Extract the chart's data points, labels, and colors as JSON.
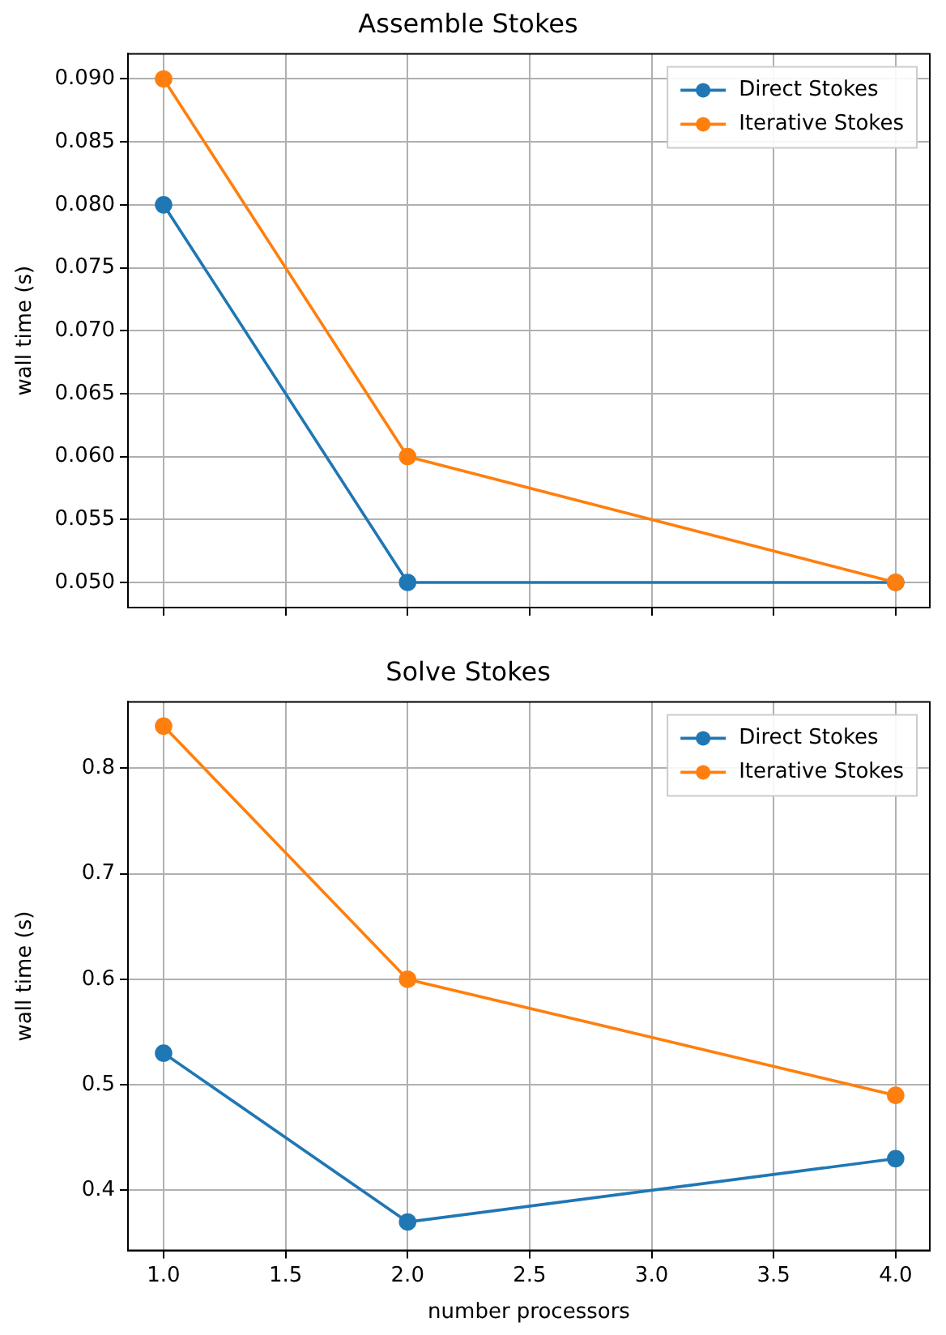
{
  "chart_data": [
    {
      "type": "line",
      "title": "Assemble Stokes",
      "ylabel": "wall time (s)",
      "x": [
        1,
        2,
        4
      ],
      "series": [
        {
          "name": "Direct Stokes",
          "color": "#1f77b4",
          "values": [
            0.08,
            0.05,
            0.05
          ]
        },
        {
          "name": "Iterative Stokes",
          "color": "#ff7f0e",
          "values": [
            0.09,
            0.06,
            0.05
          ]
        }
      ],
      "xlim": [
        0.854,
        4.14
      ],
      "xticks": [
        1,
        1.5,
        2,
        2.5,
        3,
        3.5,
        4
      ],
      "ylim": [
        0.048,
        0.092
      ],
      "yticks": [
        {
          "value": 0.05,
          "label": "0.050"
        },
        {
          "value": 0.055,
          "label": "0.055"
        },
        {
          "value": 0.06,
          "label": "0.060"
        },
        {
          "value": 0.065,
          "label": "0.065"
        },
        {
          "value": 0.07,
          "label": "0.070"
        },
        {
          "value": 0.075,
          "label": "0.075"
        },
        {
          "value": 0.08,
          "label": "0.080"
        },
        {
          "value": 0.085,
          "label": "0.085"
        },
        {
          "value": 0.09,
          "label": "0.090"
        }
      ],
      "grid": true,
      "legend": "top right",
      "marker": "circle",
      "tick_labels": "y"
    },
    {
      "type": "line",
      "title": "Solve Stokes",
      "xlabel": "number processors",
      "ylabel": "wall time (s)",
      "x": [
        1,
        2,
        4
      ],
      "series": [
        {
          "name": "Direct Stokes",
          "color": "#1f77b4",
          "values": [
            0.53,
            0.37,
            0.43
          ]
        },
        {
          "name": "Iterative Stokes",
          "color": "#ff7f0e",
          "values": [
            0.84,
            0.6,
            0.49
          ]
        }
      ],
      "xlim": [
        0.854,
        4.14
      ],
      "xticks": [
        {
          "value": 1,
          "label": "1.0"
        },
        {
          "value": 1.5,
          "label": "1.5"
        },
        {
          "value": 2,
          "label": "2.0"
        },
        {
          "value": 2.5,
          "label": "2.5"
        },
        {
          "value": 3,
          "label": "3.0"
        },
        {
          "value": 3.5,
          "label": "3.5"
        },
        {
          "value": 4,
          "label": "4.0"
        }
      ],
      "ylim": [
        0.343,
        0.863
      ],
      "yticks": [
        0.4,
        0.5,
        0.6,
        0.7,
        0.8
      ],
      "grid": true,
      "legend": "top right",
      "marker": "circle"
    }
  ]
}
